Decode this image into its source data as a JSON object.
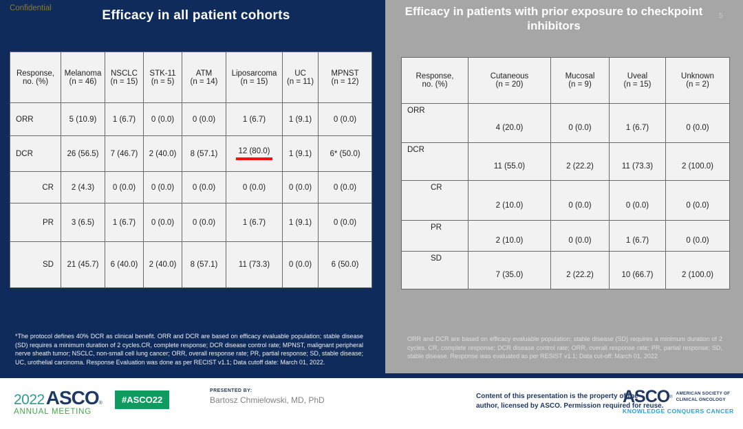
{
  "confidential_label": "Confidential",
  "page_number": "5",
  "left_panel": {
    "title": "Efficacy in all patient cohorts",
    "table": {
      "columns": [
        "Response,\nno. (%)",
        "Melanoma\n(n = 46)",
        "NSCLC\n(n = 15)",
        "STK-11\n(n = 5)",
        "ATM\n(n = 14)",
        "Liposarcoma\n(n = 15)",
        "UC\n(n = 11)",
        "MPNST\n(n = 12)"
      ],
      "rows": [
        {
          "label": "ORR",
          "indent": false,
          "values": [
            "5 (10.9)",
            "1 (6.7)",
            "0 (0.0)",
            "0 (0.0)",
            "1 (6.7)",
            "1 (9.1)",
            "0 (0.0)"
          ]
        },
        {
          "label": "DCR",
          "indent": false,
          "underline_value_index": 4,
          "values": [
            "26 (56.5)",
            "7 (46.7)",
            "2 (40.0)",
            "8 (57.1)",
            "12 (80.0)",
            "1 (9.1)",
            "6* (50.0)"
          ]
        },
        {
          "label": "CR",
          "indent": true,
          "values": [
            "2 (4.3)",
            "0 (0.0)",
            "0 (0.0)",
            "0 (0.0)",
            "0 (0.0)",
            "0 (0.0)",
            "0 (0.0)"
          ]
        },
        {
          "label": "PR",
          "indent": true,
          "values": [
            "3 (6.5)",
            "1 (6.7)",
            "0 (0.0)",
            "0 (0.0)",
            "1 (6.7)",
            "1 (9.1)",
            "0 (0.0)"
          ]
        },
        {
          "label": "SD",
          "indent": true,
          "values": [
            "21 (45.7)",
            "6 (40.0)",
            "2 (40.0)",
            "8 (57.1)",
            "11 (73.3)",
            "0 (0.0)",
            "6 (50.0)"
          ]
        }
      ]
    },
    "footnote": "*The protocol defines 40% DCR as clinical benefit. ORR and DCR are based on efficacy evaluable population; stable disease (SD) requires a minimum duration of 2 cycles.CR, complete response; DCR disease control rate; MPNST, malignant peripheral nerve sheath tumor; NSCLC, non-small cell lung cancer; ORR, overall response rate; PR, partial response; SD, stable disease; UC, urothelial carcinoma. Response Evaluation was done as per RECIST v1.1; Data cutoff date: March 01, 2022."
  },
  "right_panel": {
    "title": "Efficacy in patients with prior exposure to checkpoint inhibitors",
    "table": {
      "columns": [
        "Response,\nno. (%)",
        "Cutaneous\n(n = 20)",
        "Mucosal\n(n = 9)",
        "Uveal\n(n = 15)",
        "Unknown\n(n = 2)"
      ],
      "rows": [
        {
          "label": "ORR",
          "indent": false,
          "values": [
            "4 (20.0)",
            "0 (0.0)",
            "1 (6.7)",
            "0 (0.0)"
          ]
        },
        {
          "label": "DCR",
          "indent": false,
          "values": [
            "11 (55.0)",
            "2 (22.2)",
            "11 (73.3)",
            "2 (100.0)"
          ]
        },
        {
          "label": "CR",
          "indent": true,
          "values": [
            "2 (10.0)",
            "0 (0.0)",
            "0 (0.0)",
            "0 (0.0)"
          ]
        },
        {
          "label": "PR",
          "indent": true,
          "values": [
            "2 (10.0)",
            "0 (0.0)",
            "1 (6.7)",
            "0 (0.0)"
          ]
        },
        {
          "label": "SD",
          "indent": true,
          "values": [
            "7 (35.0)",
            "2 (22.2)",
            "10 (66.7)",
            "2 (100.0)"
          ]
        }
      ]
    },
    "footnote": "ORR and DCR are based on efficacy evaluable population; stable disease (SD) requires a minimum duration of 2 cycles. CR, complete response; DCR disease control rate; ORR, overall response rate; PR, partial response; SD, stable disease. Response was evaluated as per RESIST v1.1; Data cut-off: March 01, 2022"
  },
  "footer": {
    "logo_year": "2022",
    "logo_asco": "ASCO",
    "reg_mark": "®",
    "logo_annual": "ANNUAL MEETING",
    "hashtag": "#ASCO22",
    "presented_by_label": "PRESENTED BY:",
    "presenter": "Bartosz Chmielowski, MD, PhD",
    "permission": "Content of this presentation is the property of the\nauthor, licensed by ASCO. Permission required for reuse.",
    "asco_logo": "ASCO",
    "asco_society": "AMERICAN SOCIETY OF\nCLINICAL ONCOLOGY",
    "asco_tagline": "KNOWLEDGE CONQUERS CANCER"
  },
  "colors": {
    "navy": "#0e2b5c",
    "panel_gray": "#a6a6a6",
    "table_bg": "#f2f2f2",
    "table_border": "#686868",
    "accent_red": "#fb0f0c",
    "badge_green": "#0f9b60",
    "logo_teal": "#2f9c8e",
    "logo_green": "#45a648",
    "footer_navy": "#1f3864",
    "tagline_blue": "#2d9fd8",
    "confidential_gold": "#8f7a28"
  }
}
